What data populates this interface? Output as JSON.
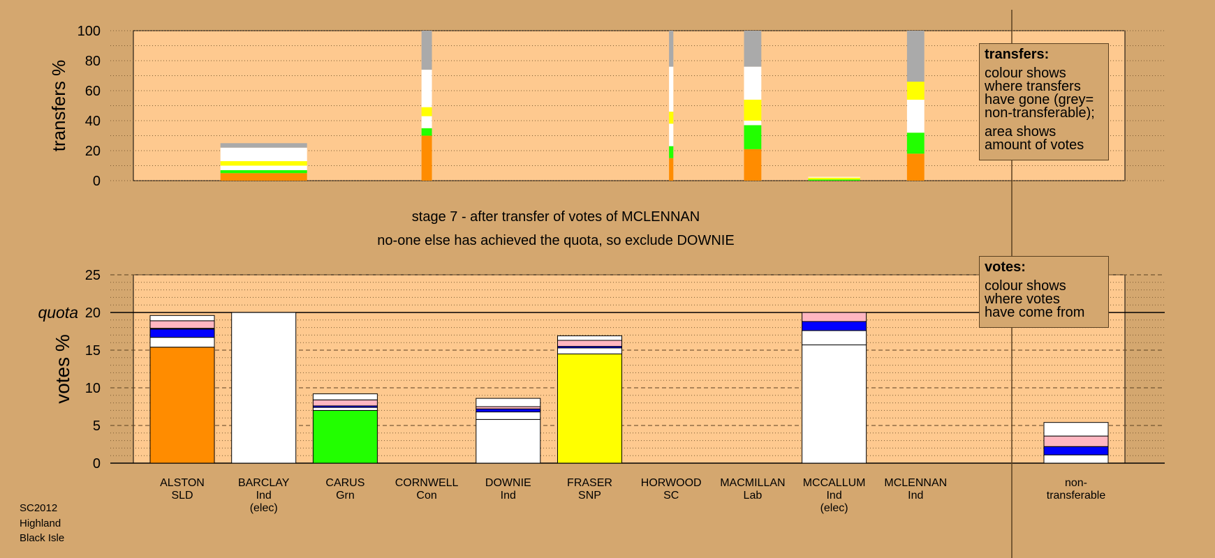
{
  "colors": {
    "background": "#d4a76f",
    "plot_bg": "#fec98f",
    "SLD": "#ff8c00",
    "Ind": "#ffffff",
    "Grn": "#22ff00",
    "SNP": "#ffff00",
    "Lab": "#ffb6c1",
    "Con": "#0000ff",
    "non_transferable": "#aaaaaa"
  },
  "footer": [
    "SC2012",
    "Highland",
    "Black Isle"
  ],
  "stage_title": "stage 7 - after transfer of votes of MCLENNAN",
  "stage_subtitle": "no-one else has achieved the quota, so exclude DOWNIE",
  "transfers_legend": {
    "title": "transfers:",
    "lines": [
      "colour shows",
      "where transfers",
      "have gone (grey=",
      "non-transferable);"
    ],
    "lines2": [
      "area shows",
      "amount of votes"
    ]
  },
  "votes_legend": {
    "title": "votes:",
    "lines": [
      "colour shows",
      "where votes",
      "have come from"
    ]
  },
  "chart_data": [
    {
      "type": "bar",
      "stacked": true,
      "ylabel": "transfers %",
      "ylim": [
        0,
        100
      ],
      "yticks": [
        "0",
        "20",
        "40",
        "60",
        "80",
        "100"
      ],
      "ytick_values": [
        0,
        20,
        40,
        60,
        80,
        100
      ],
      "grid": "dotted",
      "categories": [
        "BARCLAY",
        "CORNWELL",
        "HORWOOD",
        "MACMILLAN",
        "MCCALLUM",
        "MCLENNAN"
      ],
      "relative_width": [
        1.0,
        0.12,
        0.05,
        0.2,
        0.6,
        0.2
      ],
      "bars": [
        {
          "category": "BARCLAY",
          "segments": [
            {
              "to": "SLD",
              "value": 5
            },
            {
              "to": "Grn",
              "value": 2
            },
            {
              "to": "Ind",
              "value": 3
            },
            {
              "to": "SNP",
              "value": 3
            },
            {
              "to": "Ind",
              "value": 9
            },
            {
              "to": "non_transferable",
              "value": 3
            }
          ]
        },
        {
          "category": "CORNWELL",
          "segments": [
            {
              "to": "SLD",
              "value": 30
            },
            {
              "to": "Grn",
              "value": 5
            },
            {
              "to": "Ind",
              "value": 8
            },
            {
              "to": "SNP",
              "value": 6
            },
            {
              "to": "Ind",
              "value": 25
            },
            {
              "to": "non_transferable",
              "value": 26
            }
          ]
        },
        {
          "category": "HORWOOD",
          "segments": [
            {
              "to": "SLD",
              "value": 15
            },
            {
              "to": "Grn",
              "value": 8
            },
            {
              "to": "Ind",
              "value": 15
            },
            {
              "to": "SNP",
              "value": 8
            },
            {
              "to": "Ind",
              "value": 30
            },
            {
              "to": "non_transferable",
              "value": 24
            }
          ]
        },
        {
          "category": "MACMILLAN",
          "segments": [
            {
              "to": "SLD",
              "value": 21
            },
            {
              "to": "Grn",
              "value": 16
            },
            {
              "to": "Ind",
              "value": 3
            },
            {
              "to": "SNP",
              "value": 14
            },
            {
              "to": "Ind",
              "value": 22
            },
            {
              "to": "non_transferable",
              "value": 24
            }
          ]
        },
        {
          "category": "MCCALLUM",
          "segments": [
            {
              "to": "Grn",
              "value": 0.8
            },
            {
              "to": "SNP",
              "value": 1.2
            },
            {
              "to": "Ind",
              "value": 0.5
            }
          ]
        },
        {
          "category": "MCLENNAN",
          "segments": [
            {
              "to": "SLD",
              "value": 18
            },
            {
              "to": "Grn",
              "value": 14
            },
            {
              "to": "Ind",
              "value": 22
            },
            {
              "to": "SNP",
              "value": 12
            },
            {
              "to": "non_transferable",
              "value": 34
            }
          ]
        }
      ]
    },
    {
      "type": "bar",
      "stacked": true,
      "ylabel": "votes %",
      "ylim": [
        0,
        25
      ],
      "yticks": [
        "0",
        "5",
        "10",
        "15",
        "20",
        "25"
      ],
      "ytick_values": [
        0,
        5,
        10,
        15,
        20,
        25
      ],
      "quota_label": "quota",
      "quota": 20,
      "grid": "dashed",
      "categories": [
        "ALSTON",
        "BARCLAY",
        "CARUS",
        "CORNWELL",
        "DOWNIE",
        "FRASER",
        "HORWOOD",
        "MACMILLAN",
        "MCCALLUM",
        "MCLENNAN",
        "non-transferable"
      ],
      "candidates": [
        {
          "name": "ALSTON",
          "party": "SLD",
          "note": "",
          "segments": [
            {
              "from": "SLD",
              "value": 15.4
            },
            {
              "from": "Ind",
              "value": 1.3
            },
            {
              "from": "Con",
              "value": 1.1
            },
            {
              "from": "Ind",
              "value": 0.1
            },
            {
              "from": "Lab",
              "value": 1.0
            },
            {
              "from": "Ind",
              "value": 0.7
            }
          ]
        },
        {
          "name": "BARCLAY",
          "party": "Ind",
          "note": "(elec)",
          "segments": [
            {
              "from": "Ind",
              "value": 20.0
            }
          ]
        },
        {
          "name": "CARUS",
          "party": "Grn",
          "note": "",
          "segments": [
            {
              "from": "Grn",
              "value": 7.0
            },
            {
              "from": "Ind",
              "value": 0.4
            },
            {
              "from": "Con",
              "value": 0.2
            },
            {
              "from": "Lab",
              "value": 0.8
            },
            {
              "from": "Ind",
              "value": 0.8
            }
          ]
        },
        {
          "name": "CORNWELL",
          "party": "Con",
          "note": "",
          "segments": []
        },
        {
          "name": "DOWNIE",
          "party": "Ind",
          "note": "",
          "segments": [
            {
              "from": "Ind",
              "value": 5.8
            },
            {
              "from": "Ind",
              "value": 1.0
            },
            {
              "from": "Con",
              "value": 0.4
            },
            {
              "from": "Lab",
              "value": 0.3
            },
            {
              "from": "Ind",
              "value": 1.1
            }
          ]
        },
        {
          "name": "FRASER",
          "party": "SNP",
          "note": "",
          "segments": [
            {
              "from": "SNP",
              "value": 14.5
            },
            {
              "from": "Ind",
              "value": 0.8
            },
            {
              "from": "Con",
              "value": 0.2
            },
            {
              "from": "Lab",
              "value": 0.8
            },
            {
              "from": "Ind",
              "value": 0.6
            }
          ]
        },
        {
          "name": "HORWOOD",
          "party": "SC",
          "note": "",
          "segments": []
        },
        {
          "name": "MACMILLAN",
          "party": "Lab",
          "note": "",
          "segments": []
        },
        {
          "name": "MCCALLUM",
          "party": "Ind",
          "note": "(elec)",
          "segments": [
            {
              "from": "Ind",
              "value": 15.7
            },
            {
              "from": "Ind",
              "value": 1.9
            },
            {
              "from": "Con",
              "value": 1.2
            },
            {
              "from": "Lab",
              "value": 1.2
            }
          ]
        },
        {
          "name": "MCLENNAN",
          "party": "Ind",
          "note": "",
          "segments": []
        },
        {
          "name": "non-",
          "party": "transferable",
          "note": "",
          "segments": [
            {
              "from": "Ind",
              "value": 1.1
            },
            {
              "from": "Con",
              "value": 1.1
            },
            {
              "from": "Lab",
              "value": 1.4
            },
            {
              "from": "Ind",
              "value": 1.8
            }
          ]
        }
      ]
    }
  ]
}
